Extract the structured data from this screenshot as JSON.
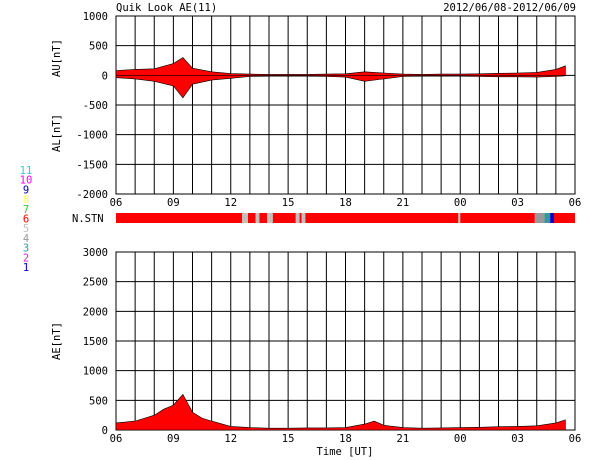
{
  "header": {
    "title": "Quik Look AE(11)",
    "date_range": "2012/06/08-2012/06/09"
  },
  "x_axis": {
    "tick_labels": [
      "06",
      "09",
      "12",
      "15",
      "18",
      "21",
      "00",
      "03",
      "06"
    ],
    "label": "Time [UT]"
  },
  "station_legend": {
    "items": [
      {
        "label": "11",
        "color": "#33cccc"
      },
      {
        "label": "10",
        "color": "#ff00ff"
      },
      {
        "label": "9",
        "color": "#0000aa"
      },
      {
        "label": "8",
        "color": "#ffff66"
      },
      {
        "label": "7",
        "color": "#33cc33"
      },
      {
        "label": "6",
        "color": "#ff0000"
      },
      {
        "label": "5",
        "color": "#c0c0c0"
      },
      {
        "label": "4",
        "color": "#999999"
      },
      {
        "label": "3",
        "color": "#339999"
      },
      {
        "label": "2",
        "color": "#cc33cc"
      },
      {
        "label": "1",
        "color": "#0000cc"
      }
    ]
  },
  "chart_data": [
    {
      "type": "area",
      "title": "Quik Look AE(11)",
      "series": [
        {
          "name": "AU[nT]",
          "color": "#ff0000"
        },
        {
          "name": "AL[nT]",
          "color": "#ff0000"
        }
      ],
      "ylabel_top": "AU[nT]",
      "ylabel_bottom": "AL[nT]",
      "ylim": [
        -2000,
        1000
      ],
      "yticks": [
        1000,
        500,
        0,
        -500,
        -1000,
        -1500,
        -2000
      ],
      "x_hours": [
        6,
        7,
        8,
        9,
        9.5,
        10,
        11,
        12,
        13,
        14,
        15,
        16,
        17,
        18,
        19,
        20,
        21,
        22,
        23,
        24,
        25,
        26,
        27,
        28,
        29,
        29.5
      ],
      "au_values": [
        80,
        100,
        110,
        200,
        300,
        120,
        60,
        30,
        20,
        15,
        15,
        15,
        20,
        25,
        60,
        40,
        20,
        15,
        20,
        20,
        25,
        35,
        40,
        50,
        100,
        160
      ],
      "al_values": [
        -40,
        -60,
        -100,
        -180,
        -380,
        -150,
        -80,
        -50,
        -20,
        -15,
        -15,
        -15,
        -20,
        -30,
        -100,
        -60,
        -20,
        -15,
        -15,
        -15,
        -20,
        -25,
        -25,
        -30,
        -20,
        -10
      ]
    },
    {
      "type": "status_bar",
      "label": "N.STN",
      "segments": [
        {
          "from": 6,
          "to": 12.6,
          "stations": 6
        },
        {
          "from": 12.6,
          "to": 12.9,
          "stations": 5
        },
        {
          "from": 12.9,
          "to": 13.3,
          "stations": 6
        },
        {
          "from": 13.3,
          "to": 13.5,
          "stations": 5
        },
        {
          "from": 13.5,
          "to": 13.9,
          "stations": 6
        },
        {
          "from": 13.9,
          "to": 14.2,
          "stations": 5
        },
        {
          "from": 14.2,
          "to": 15.4,
          "stations": 6
        },
        {
          "from": 15.4,
          "to": 15.6,
          "stations": 5
        },
        {
          "from": 15.6,
          "to": 15.7,
          "stations": 6
        },
        {
          "from": 15.7,
          "to": 15.9,
          "stations": 5
        },
        {
          "from": 15.9,
          "to": 23.9,
          "stations": 6
        },
        {
          "from": 23.9,
          "to": 24.0,
          "stations": 5
        },
        {
          "from": 24.0,
          "to": 27.9,
          "stations": 6
        },
        {
          "from": 27.9,
          "to": 28.4,
          "stations": 4
        },
        {
          "from": 28.4,
          "to": 28.7,
          "stations": 3
        },
        {
          "from": 28.7,
          "to": 28.9,
          "stations": 1
        },
        {
          "from": 28.9,
          "to": 30,
          "stations": 6
        }
      ]
    },
    {
      "type": "area",
      "series": [
        {
          "name": "AE[nT]",
          "color": "#ff0000"
        }
      ],
      "ylabel": "AE[nT]",
      "ylim": [
        0,
        3000
      ],
      "yticks": [
        3000,
        2500,
        2000,
        1500,
        1000,
        500,
        0
      ],
      "x_hours": [
        6,
        7,
        8,
        8.5,
        9,
        9.5,
        10,
        10.5,
        11,
        12,
        13,
        14,
        15,
        16,
        17,
        18,
        19,
        19.5,
        20,
        21,
        22,
        23,
        24,
        25,
        26,
        27,
        28,
        29,
        29.5
      ],
      "values": [
        120,
        150,
        250,
        350,
        420,
        600,
        300,
        200,
        150,
        60,
        40,
        30,
        30,
        35,
        35,
        40,
        100,
        150,
        80,
        40,
        30,
        35,
        40,
        45,
        55,
        60,
        70,
        120,
        170
      ]
    }
  ]
}
